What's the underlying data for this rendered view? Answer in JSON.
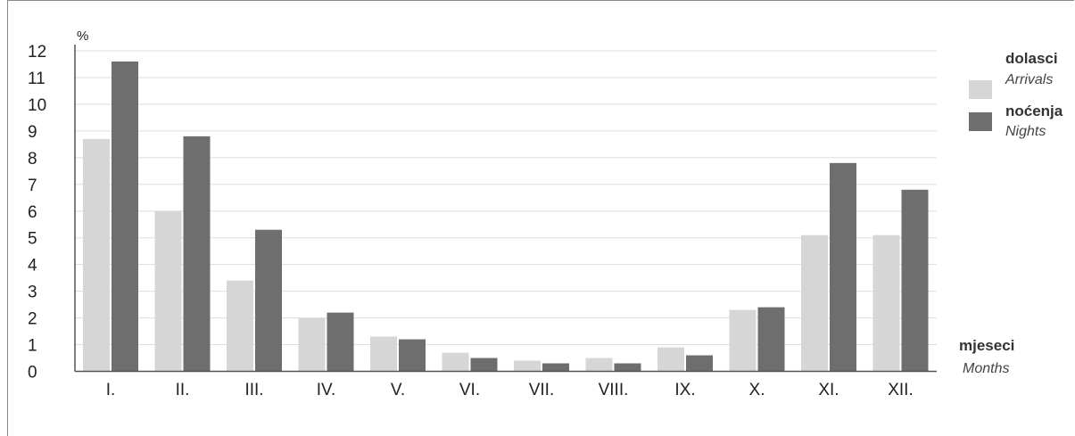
{
  "chart_data": {
    "type": "bar",
    "y_unit": "%",
    "ylim": [
      0,
      12
    ],
    "yticks": [
      "0",
      "1",
      "2",
      "3",
      "4",
      "5",
      "6",
      "7",
      "8",
      "9",
      "10",
      "11",
      "12"
    ],
    "grid": true,
    "legend_position": "right",
    "categories": [
      "I.",
      "II.",
      "III.",
      "IV.",
      "V.",
      "VI.",
      "VII.",
      "VIII.",
      "IX.",
      "X.",
      "XI.",
      "XII."
    ],
    "series": [
      {
        "name": "dolasci",
        "name_en": "Arrivals",
        "color": "#d6d6d6",
        "values": [
          8.7,
          6.0,
          3.4,
          2.0,
          1.3,
          0.7,
          0.4,
          0.5,
          0.9,
          2.3,
          5.1,
          5.1
        ]
      },
      {
        "name": "noćenja",
        "name_en": "Nights",
        "color": "#6e6e6e",
        "values": [
          11.6,
          8.8,
          5.3,
          2.2,
          1.2,
          0.5,
          0.3,
          0.3,
          0.6,
          2.4,
          7.8,
          6.8
        ]
      }
    ],
    "xlabel": "mjeseci",
    "xlabel_en": "Months"
  }
}
